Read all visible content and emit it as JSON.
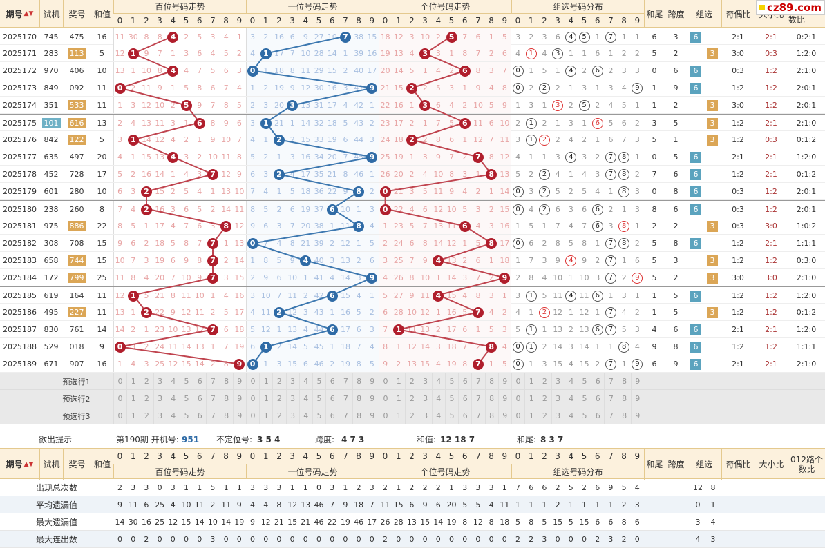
{
  "header": {
    "period_label": "期号",
    "trial_label": "试机",
    "prize_label": "奖号",
    "sum_label": "和值",
    "bai_label": "百位号码走势",
    "shi_label": "十位号码走势",
    "ge_label": "个位号码走势",
    "zuxuan_dist_label": "组选号码分布",
    "hewei_label": "和尾",
    "kuadu_label": "跨度",
    "zuxuan_label": "组选",
    "jiou_label": "奇偶比",
    "daxiao_label": "大小比",
    "lu012_label": "012路个数比",
    "digits": [
      "0",
      "1",
      "2",
      "3",
      "4",
      "5",
      "6",
      "7",
      "8",
      "9"
    ]
  },
  "logo": {
    "text": "cz89.com"
  },
  "rows": [
    {
      "p": "2025170",
      "t": "745",
      "w": "475",
      "s": "16",
      "b": 4,
      "sh": 7,
      "g": 5,
      "hw": "6",
      "kd": "3",
      "zx": "6",
      "jo": "2:1",
      "dx": "2:1",
      "lu": "0:2:1",
      "bm": [
        11,
        30,
        8,
        8,
        "",
        2,
        5,
        3,
        4,
        1
      ],
      "sm": [
        3,
        2,
        16,
        6,
        9,
        27,
        10,
        "",
        38,
        15
      ],
      "gm": [
        18,
        12,
        3,
        10,
        2,
        "",
        7,
        6,
        1,
        5
      ],
      "zd": [
        3,
        2,
        3,
        6,
        "4",
        "5",
        1,
        "7",
        1,
        1
      ]
    },
    {
      "p": "2025171",
      "t": "283",
      "w": "113",
      "s": "5",
      "b": 1,
      "sh": 1,
      "g": 3,
      "hw": "5",
      "kd": "2",
      "zx": "3",
      "jo": "3:0",
      "dx": "0:3",
      "lu": "1:2:0",
      "bm": [
        12,
        "",
        9,
        7,
        1,
        3,
        6,
        4,
        5,
        2
      ],
      "sm": [
        4,
        "",
        17,
        7,
        10,
        28,
        14,
        1,
        39,
        16
      ],
      "gm": [
        19,
        13,
        4,
        "",
        3,
        1,
        8,
        7,
        2,
        6
      ],
      "zd": [
        4,
        "1r",
        4,
        "3",
        1,
        1,
        6,
        1,
        2,
        2
      ]
    },
    {
      "p": "2025172",
      "t": "970",
      "w": "406",
      "s": "10",
      "b": 4,
      "sh": 0,
      "g": 6,
      "hw": "0",
      "kd": "6",
      "zx": "6",
      "jo": "0:3",
      "dx": "1:2",
      "lu": "2:1:0",
      "bm": [
        13,
        1,
        10,
        8,
        "",
        4,
        7,
        5,
        6,
        3
      ],
      "sm": [
        "",
        1,
        18,
        8,
        11,
        29,
        15,
        2,
        40,
        17
      ],
      "gm": [
        20,
        14,
        5,
        1,
        4,
        2,
        "",
        8,
        3,
        7
      ],
      "zd": [
        "0",
        1,
        5,
        1,
        "4",
        2,
        "6",
        2,
        3,
        3
      ]
    },
    {
      "p": "2025173",
      "t": "849",
      "w": "092",
      "s": "11",
      "b": 0,
      "sh": 9,
      "g": 2,
      "hw": "1",
      "kd": "9",
      "zx": "6",
      "jo": "1:2",
      "dx": "1:2",
      "lu": "2:0:1",
      "bm": [
        "",
        2,
        11,
        9,
        1,
        5,
        8,
        6,
        7,
        4
      ],
      "sm": [
        1,
        2,
        19,
        9,
        12,
        30,
        16,
        3,
        41,
        ""
      ],
      "gm": [
        21,
        15,
        "",
        2,
        5,
        3,
        1,
        9,
        4,
        8
      ],
      "zd": [
        "0",
        2,
        "2",
        2,
        1,
        3,
        1,
        3,
        4,
        "9"
      ]
    },
    {
      "p": "2025174",
      "t": "351",
      "w": "533",
      "s": "11",
      "b": 5,
      "sh": 3,
      "g": 3,
      "hw": "1",
      "kd": "2",
      "zx": "3",
      "jo": "3:0",
      "dx": "1:2",
      "lu": "2:0:1",
      "bm": [
        1,
        3,
        12,
        10,
        2,
        "",
        9,
        7,
        8,
        5
      ],
      "sm": [
        2,
        3,
        20,
        "",
        13,
        31,
        17,
        4,
        42,
        1
      ],
      "gm": [
        22,
        16,
        1,
        "",
        6,
        4,
        2,
        10,
        5,
        9
      ],
      "zd": [
        1,
        3,
        1,
        "3r",
        2,
        "5",
        2,
        4,
        5,
        1
      ]
    },
    {
      "p": "2025175",
      "t": "101",
      "w": "616",
      "s": "13",
      "b": 6,
      "sh": 1,
      "g": 6,
      "hw": "3",
      "kd": "5",
      "zx": "3",
      "jo": "1:2",
      "dx": "2:1",
      "lu": "2:1:0",
      "bm": [
        2,
        4,
        13,
        11,
        3,
        1,
        "",
        8,
        9,
        6
      ],
      "sm": [
        3,
        "",
        21,
        1,
        14,
        32,
        18,
        5,
        43,
        2
      ],
      "gm": [
        23,
        17,
        2,
        1,
        7,
        5,
        "",
        11,
        6,
        10
      ],
      "zd": [
        2,
        "1",
        2,
        1,
        3,
        1,
        "6r",
        5,
        6,
        2
      ]
    },
    {
      "p": "2025176",
      "t": "842",
      "w": "122",
      "s": "5",
      "b": 1,
      "sh": 2,
      "g": 2,
      "hw": "5",
      "kd": "1",
      "zx": "3",
      "jo": "1:2",
      "dx": "0:3",
      "lu": "0:1:2",
      "bm": [
        3,
        "",
        14,
        12,
        4,
        2,
        1,
        9,
        10,
        7
      ],
      "sm": [
        4,
        1,
        "",
        2,
        15,
        33,
        19,
        6,
        44,
        3
      ],
      "gm": [
        24,
        18,
        "",
        2,
        8,
        6,
        1,
        12,
        7,
        11
      ],
      "zd": [
        3,
        "1",
        "2r",
        2,
        4,
        2,
        1,
        6,
        7,
        3
      ]
    },
    {
      "p": "2025177",
      "t": "635",
      "w": "497",
      "s": "20",
      "b": 4,
      "sh": 9,
      "g": 7,
      "hw": "0",
      "kd": "5",
      "zx": "6",
      "jo": "2:1",
      "dx": "2:1",
      "lu": "1:2:0",
      "bm": [
        4,
        1,
        15,
        13,
        "",
        3,
        2,
        10,
        11,
        8
      ],
      "sm": [
        5,
        2,
        1,
        3,
        16,
        34,
        20,
        7,
        45,
        ""
      ],
      "gm": [
        25,
        19,
        1,
        3,
        9,
        7,
        2,
        "",
        8,
        12
      ],
      "zd": [
        4,
        1,
        1,
        3,
        "4",
        3,
        2,
        "7",
        "8",
        1
      ]
    },
    {
      "p": "2025178",
      "t": "452",
      "w": "728",
      "s": "17",
      "b": 7,
      "sh": 2,
      "g": 8,
      "hw": "7",
      "kd": "6",
      "zx": "6",
      "jo": "1:2",
      "dx": "2:1",
      "lu": "0:1:2",
      "bm": [
        5,
        2,
        16,
        14,
        1,
        4,
        3,
        "",
        12,
        9
      ],
      "sm": [
        6,
        3,
        "",
        4,
        17,
        35,
        21,
        8,
        46,
        1
      ],
      "gm": [
        26,
        20,
        2,
        4,
        10,
        8,
        3,
        1,
        "",
        13
      ],
      "zd": [
        5,
        2,
        "2",
        4,
        1,
        4,
        3,
        "7",
        "8",
        2
      ]
    },
    {
      "p": "2025179",
      "t": "601",
      "w": "280",
      "s": "10",
      "b": 2,
      "sh": 8,
      "g": 0,
      "hw": "0",
      "kd": "8",
      "zx": "6",
      "jo": "0:3",
      "dx": "1:2",
      "lu": "2:0:1",
      "bm": [
        6,
        3,
        "",
        15,
        2,
        5,
        4,
        1,
        13,
        10
      ],
      "sm": [
        7,
        4,
        1,
        5,
        18,
        36,
        22,
        9,
        "",
        2
      ],
      "gm": [
        "",
        21,
        3,
        5,
        11,
        9,
        4,
        2,
        1,
        14
      ],
      "zd": [
        "0",
        3,
        "2",
        5,
        2,
        5,
        4,
        1,
        "8",
        3
      ]
    },
    {
      "p": "2025180",
      "t": "238",
      "w": "260",
      "s": "8",
      "b": 2,
      "sh": 6,
      "g": 0,
      "hw": "8",
      "kd": "6",
      "zx": "6",
      "jo": "0:3",
      "dx": "1:2",
      "lu": "2:0:1",
      "bm": [
        7,
        4,
        "",
        16,
        3,
        6,
        5,
        2,
        14,
        11
      ],
      "sm": [
        8,
        5,
        2,
        6,
        19,
        37,
        "",
        10,
        1,
        3
      ],
      "gm": [
        "",
        22,
        4,
        6,
        12,
        10,
        5,
        3,
        2,
        15
      ],
      "zd": [
        "0",
        4,
        "2",
        6,
        3,
        6,
        "6",
        2,
        1,
        3
      ]
    },
    {
      "p": "2025181",
      "t": "975",
      "w": "886",
      "s": "22",
      "b": 8,
      "sh": 8,
      "g": 6,
      "hw": "2",
      "kd": "2",
      "zx": "3",
      "jo": "0:3",
      "dx": "3:0",
      "lu": "1:0:2",
      "bm": [
        8,
        5,
        1,
        17,
        4,
        7,
        6,
        3,
        "",
        12
      ],
      "sm": [
        9,
        6,
        3,
        7,
        20,
        38,
        1,
        11,
        "",
        4
      ],
      "gm": [
        1,
        23,
        5,
        7,
        13,
        11,
        "",
        4,
        3,
        16
      ],
      "zd": [
        1,
        5,
        1,
        7,
        4,
        7,
        "6",
        3,
        "8r",
        1
      ]
    },
    {
      "p": "2025182",
      "t": "308",
      "w": "708",
      "s": "15",
      "b": 7,
      "sh": 0,
      "g": 8,
      "hw": "5",
      "kd": "8",
      "zx": "6",
      "jo": "1:2",
      "dx": "2:1",
      "lu": "1:1:1",
      "bm": [
        9,
        6,
        2,
        18,
        5,
        8,
        7,
        "",
        1,
        13
      ],
      "sm": [
        "",
        7,
        4,
        8,
        21,
        39,
        2,
        12,
        1,
        5
      ],
      "gm": [
        2,
        24,
        6,
        8,
        14,
        12,
        1,
        5,
        "",
        17
      ],
      "zd": [
        "0",
        6,
        2,
        8,
        5,
        8,
        1,
        "7",
        "8",
        2
      ]
    },
    {
      "p": "2025183",
      "t": "658",
      "w": "744",
      "s": "15",
      "b": 7,
      "sh": 4,
      "g": 4,
      "hw": "5",
      "kd": "3",
      "zx": "3",
      "jo": "1:2",
      "dx": "1:2",
      "lu": "0:3:0",
      "bm": [
        10,
        7,
        3,
        19,
        6,
        9,
        8,
        "",
        2,
        14
      ],
      "sm": [
        1,
        8,
        5,
        9,
        "",
        40,
        3,
        13,
        2,
        6
      ],
      "gm": [
        3,
        25,
        7,
        9,
        "",
        13,
        2,
        6,
        1,
        18
      ],
      "zd": [
        1,
        7,
        3,
        9,
        "4r",
        9,
        2,
        "7",
        1,
        6
      ]
    },
    {
      "p": "2025184",
      "t": "172",
      "w": "799",
      "s": "25",
      "b": 7,
      "sh": 9,
      "g": 9,
      "hw": "5",
      "kd": "2",
      "zx": "3",
      "jo": "3:0",
      "dx": "3:0",
      "lu": "2:1:0",
      "bm": [
        11,
        8,
        4,
        20,
        7,
        10,
        9,
        "",
        3,
        15
      ],
      "sm": [
        2,
        9,
        6,
        10,
        1,
        41,
        4,
        14,
        3,
        ""
      ],
      "gm": [
        4,
        26,
        8,
        10,
        1,
        14,
        3,
        7,
        2,
        ""
      ],
      "zd": [
        2,
        8,
        4,
        10,
        1,
        10,
        3,
        "7",
        2,
        "9r"
      ]
    },
    {
      "p": "2025185",
      "t": "619",
      "w": "164",
      "s": "11",
      "b": 1,
      "sh": 6,
      "g": 4,
      "hw": "1",
      "kd": "5",
      "zx": "6",
      "jo": "1:2",
      "dx": "1:2",
      "lu": "1:2:0",
      "bm": [
        12,
        "",
        5,
        21,
        8,
        11,
        10,
        1,
        4,
        16
      ],
      "sm": [
        3,
        10,
        7,
        11,
        2,
        42,
        "",
        15,
        4,
        1
      ],
      "gm": [
        5,
        27,
        9,
        11,
        "",
        15,
        4,
        8,
        3,
        1
      ],
      "zd": [
        3,
        "1",
        5,
        11,
        "4",
        11,
        "6",
        1,
        3,
        1
      ]
    },
    {
      "p": "2025186",
      "t": "495",
      "w": "227",
      "s": "11",
      "b": 2,
      "sh": 2,
      "g": 7,
      "hw": "1",
      "kd": "5",
      "zx": "3",
      "jo": "1:2",
      "dx": "1:2",
      "lu": "0:1:2",
      "bm": [
        13,
        1,
        "",
        22,
        9,
        12,
        11,
        2,
        5,
        17
      ],
      "sm": [
        4,
        11,
        "",
        12,
        3,
        43,
        1,
        16,
        5,
        2
      ],
      "gm": [
        6,
        28,
        10,
        12,
        1,
        16,
        5,
        "",
        4,
        2
      ],
      "zd": [
        4,
        1,
        "2r",
        12,
        1,
        12,
        1,
        "7",
        4,
        2
      ]
    },
    {
      "p": "2025187",
      "t": "830",
      "w": "761",
      "s": "14",
      "b": 7,
      "sh": 6,
      "g": 1,
      "hw": "4",
      "kd": "6",
      "zx": "6",
      "jo": "2:1",
      "dx": "2:1",
      "lu": "1:2:0",
      "bm": [
        14,
        2,
        1,
        23,
        10,
        13,
        12,
        "",
        6,
        18
      ],
      "sm": [
        5,
        12,
        1,
        13,
        4,
        44,
        "",
        17,
        6,
        3
      ],
      "gm": [
        7,
        "",
        11,
        13,
        2,
        17,
        6,
        1,
        5,
        3
      ],
      "zd": [
        5,
        "1",
        1,
        13,
        2,
        13,
        "6",
        "7",
        5,
        3
      ]
    },
    {
      "p": "2025188",
      "t": "529",
      "w": "018",
      "s": "9",
      "b": 0,
      "sh": 1,
      "g": 8,
      "hw": "9",
      "kd": "8",
      "zx": "6",
      "jo": "1:2",
      "dx": "1:2",
      "lu": "1:1:1",
      "bm": [
        "",
        3,
        2,
        24,
        11,
        14,
        13,
        1,
        7,
        19
      ],
      "sm": [
        6,
        "",
        2,
        14,
        5,
        45,
        1,
        18,
        7,
        4
      ],
      "gm": [
        8,
        1,
        12,
        14,
        3,
        18,
        7,
        2,
        "",
        4
      ],
      "zd": [
        "0",
        "1",
        2,
        14,
        3,
        14,
        1,
        1,
        "8",
        4
      ]
    },
    {
      "p": "2025189",
      "t": "671",
      "w": "907",
      "s": "16",
      "b": 9,
      "sh": 0,
      "g": 7,
      "hw": "6",
      "kd": "9",
      "zx": "6",
      "jo": "2:1",
      "dx": "2:1",
      "lu": "2:1:0",
      "bm": [
        1,
        4,
        3,
        25,
        12,
        15,
        14,
        2,
        8,
        ""
      ],
      "sm": [
        "",
        1,
        3,
        15,
        6,
        46,
        2,
        19,
        8,
        5
      ],
      "gm": [
        9,
        2,
        13,
        15,
        4,
        19,
        8,
        "",
        1,
        5
      ],
      "zd": [
        "0",
        1,
        3,
        15,
        4,
        15,
        2,
        "7",
        1,
        "9"
      ]
    }
  ],
  "preselect": [
    "预选行1",
    "预选行2",
    "预选行3"
  ],
  "hint": {
    "label": "欲出提示",
    "open_label": "第190期 开机号:",
    "open_value": "951",
    "budingwei_label": "不定位号:",
    "budingwei_value": "3 5 4",
    "kuadu_label": "跨度:",
    "kuadu_value": "4 7 3",
    "hezhi_label": "和值:",
    "hezhi_value": "12 18 7",
    "hewei_label": "和尾:",
    "hewei_value": "8 3 7"
  },
  "stats": [
    {
      "label": "出现总次数",
      "bai": [
        2,
        3,
        3,
        0,
        3,
        1,
        1,
        5,
        1,
        1
      ],
      "shi": [
        3,
        3,
        3,
        1,
        1,
        0,
        3,
        1,
        2,
        3
      ],
      "ge": [
        2,
        1,
        2,
        2,
        2,
        1,
        3,
        3,
        3,
        1
      ],
      "zx": [
        7,
        6,
        6,
        2,
        5,
        2,
        6,
        9,
        5,
        4
      ],
      "zu": [
        "12",
        "8"
      ]
    },
    {
      "label": "平均遗漏值",
      "bai": [
        9,
        11,
        6,
        25,
        4,
        10,
        11,
        2,
        11,
        9
      ],
      "shi": [
        4,
        4,
        8,
        12,
        13,
        46,
        7,
        9,
        18,
        7
      ],
      "ge": [
        11,
        15,
        6,
        9,
        6,
        20,
        5,
        5,
        4,
        11
      ],
      "zx": [
        1,
        1,
        1,
        2,
        1,
        1,
        1,
        1,
        2,
        3
      ],
      "zu": [
        "0",
        "1"
      ]
    },
    {
      "label": "最大遗漏值",
      "bai": [
        14,
        30,
        16,
        25,
        12,
        15,
        14,
        10,
        14,
        19
      ],
      "shi": [
        9,
        12,
        21,
        15,
        21,
        46,
        22,
        19,
        46,
        17
      ],
      "ge": [
        26,
        28,
        13,
        15,
        14,
        19,
        8,
        12,
        8,
        18
      ],
      "zx": [
        5,
        8,
        5,
        15,
        5,
        15,
        6,
        6,
        8,
        6
      ],
      "zu": [
        "3",
        "4"
      ]
    },
    {
      "label": "最大连出数",
      "bai": [
        0,
        0,
        2,
        0,
        0,
        0,
        0,
        3,
        0,
        0
      ],
      "shi": [
        0,
        0,
        0,
        0,
        0,
        0,
        0,
        0,
        0,
        0
      ],
      "ge": [
        2,
        0,
        0,
        0,
        0,
        0,
        0,
        0,
        0,
        0
      ],
      "zx": [
        2,
        2,
        3,
        0,
        0,
        0,
        2,
        3,
        2,
        0
      ],
      "zu": [
        "4",
        "3"
      ]
    }
  ]
}
